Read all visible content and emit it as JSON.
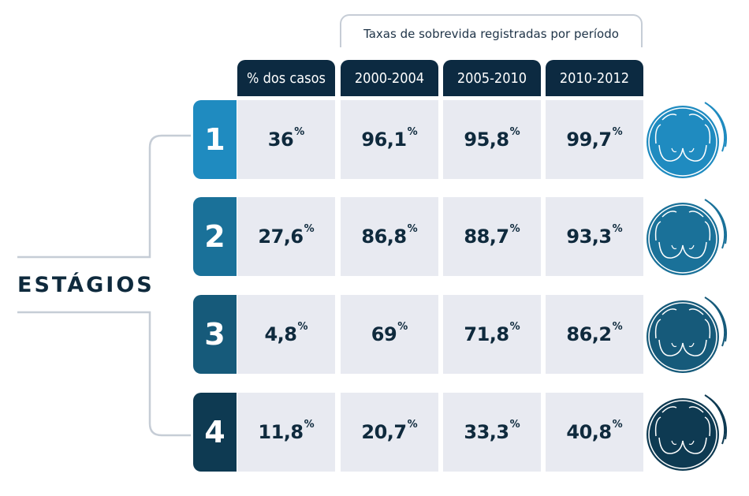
{
  "caption": "Taxas de sobrevida registradas por período",
  "stages_label": "ESTÁGIOS",
  "columns": [
    "% dos casos",
    "2000-2004",
    "2005-2010",
    "2010-2012"
  ],
  "rows": [
    {
      "stage": "1",
      "color": "#1f8bc0",
      "icon_bg": "#1f8bc0",
      "values": [
        "36",
        "96,1",
        "95,8",
        "99,7"
      ]
    },
    {
      "stage": "2",
      "color": "#1a7199",
      "icon_bg": "#1a7199",
      "values": [
        "27,6",
        "86,8",
        "88,7",
        "93,3"
      ]
    },
    {
      "stage": "3",
      "color": "#165a7a",
      "icon_bg": "#165a7a",
      "values": [
        "4,8",
        "69",
        "71,8",
        "86,2"
      ]
    },
    {
      "stage": "4",
      "color": "#0e3a52",
      "icon_bg": "#0e3a52",
      "values": [
        "11,8",
        "20,7",
        "33,3",
        "40,8"
      ]
    }
  ],
  "percent_symbol": "%",
  "icon": "breast-icon",
  "chart_data": {
    "type": "table",
    "title": "Taxas de sobrevida registradas por período",
    "row_header": "ESTÁGIOS",
    "columns": [
      "% dos casos",
      "2000-2004",
      "2005-2010",
      "2010-2012"
    ],
    "rows": [
      {
        "stage": "1",
        "values": [
          36,
          96.1,
          95.8,
          99.7
        ]
      },
      {
        "stage": "2",
        "values": [
          27.6,
          86.8,
          88.7,
          93.3
        ]
      },
      {
        "stage": "3",
        "values": [
          4.8,
          69,
          71.8,
          86.2
        ]
      },
      {
        "stage": "4",
        "values": [
          11.8,
          20.7,
          33.3,
          40.8
        ]
      }
    ],
    "unit": "%"
  }
}
